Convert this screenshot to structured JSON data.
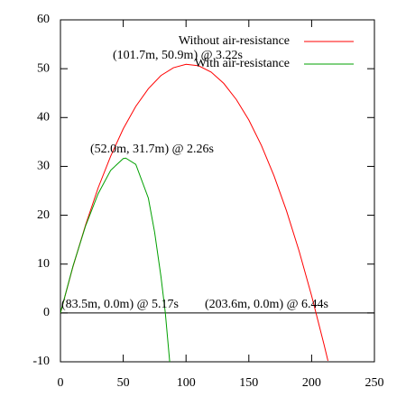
{
  "chart_data": {
    "type": "line",
    "series": [
      {
        "name": "Without air-resistance",
        "color": "#ff0000",
        "x": [
          0,
          10,
          20,
          30,
          40,
          50,
          60,
          70,
          80,
          90,
          100,
          110,
          120,
          130,
          140,
          150,
          160,
          170,
          180,
          190,
          200,
          210,
          213
        ],
        "values": [
          0,
          9.5,
          18.0,
          25.6,
          32.1,
          37.7,
          42.3,
          45.9,
          48.6,
          50.2,
          50.9,
          50.6,
          49.3,
          47.0,
          43.7,
          39.5,
          34.3,
          28.1,
          20.9,
          12.7,
          3.5,
          -6.6,
          -9.8
        ]
      },
      {
        "name": "With air-resistance",
        "color": "#00a000",
        "x": [
          0,
          10,
          20,
          30,
          40,
          50,
          52,
          60,
          70,
          75,
          80,
          83.5,
          87
        ],
        "values": [
          0,
          9.6,
          17.8,
          24.4,
          29.2,
          31.6,
          31.7,
          30.4,
          23.5,
          16.5,
          7.5,
          0,
          -10
        ]
      }
    ],
    "annotations": [
      "(101.7m, 50.9m) @ 3.22s",
      "(52.0m, 31.7m) @ 2.26s",
      "(83.5m, 0.0m) @ 5.17s",
      "(203.6m, 0.0m) @ 6.44s"
    ],
    "xlim": [
      0,
      250
    ],
    "xticks": [
      0,
      50,
      100,
      150,
      200,
      250
    ],
    "ylim": [
      -10,
      60
    ],
    "yticks": [
      -10,
      0,
      10,
      20,
      30,
      40,
      50,
      60
    ],
    "legend": "top-right"
  }
}
